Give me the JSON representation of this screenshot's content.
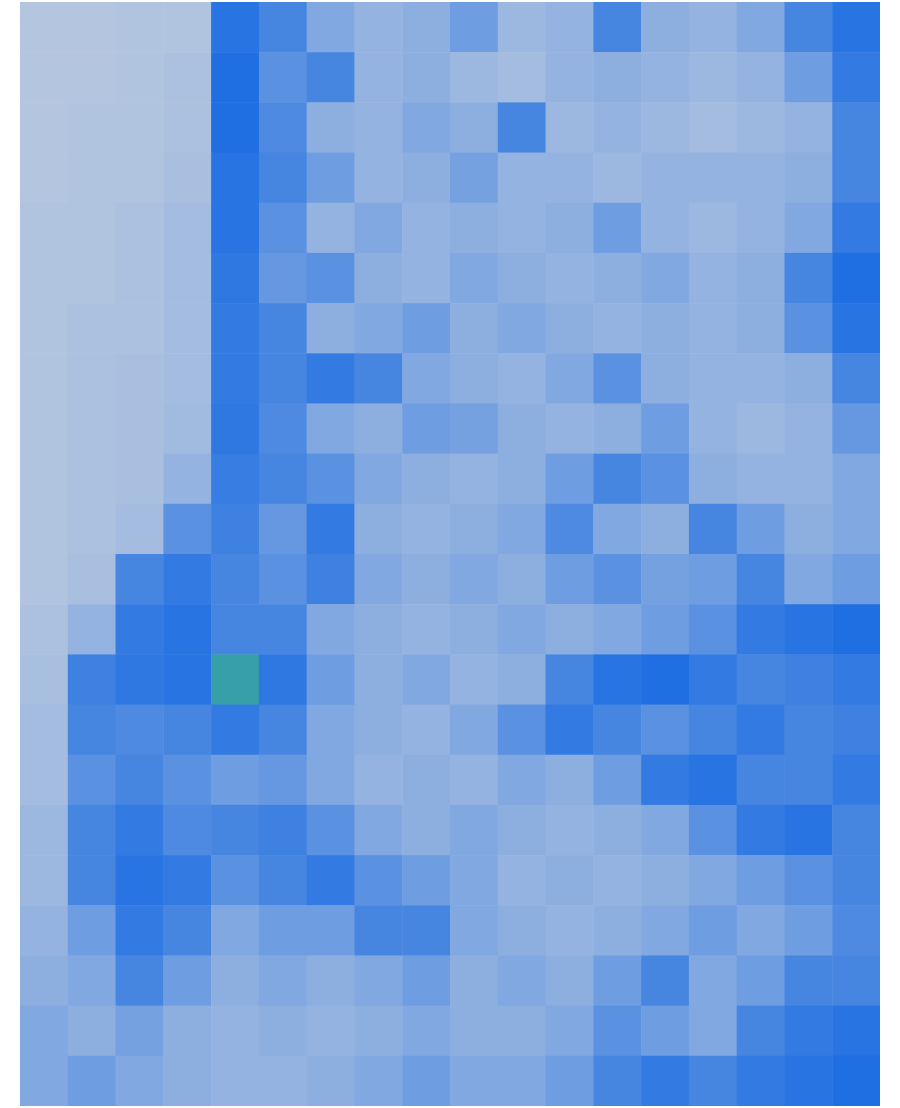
{
  "chart_data": {
    "type": "heatmap",
    "clim": [
      0,
      1
    ],
    "tick_labels": false,
    "cells": [
      [
        0.02,
        0.02,
        0.03,
        0.03,
        0.38,
        0.3,
        0.15,
        0.1,
        0.12,
        0.2,
        0.08,
        0.1,
        0.3,
        0.12,
        0.1,
        0.15,
        0.3,
        0.38
      ],
      [
        0.02,
        0.02,
        0.03,
        0.04,
        0.4,
        0.25,
        0.3,
        0.1,
        0.12,
        0.08,
        0.06,
        0.1,
        0.12,
        0.1,
        0.08,
        0.1,
        0.2,
        0.35
      ],
      [
        0.02,
        0.03,
        0.03,
        0.04,
        0.4,
        0.28,
        0.12,
        0.1,
        0.15,
        0.12,
        0.3,
        0.08,
        0.1,
        0.08,
        0.06,
        0.08,
        0.1,
        0.3
      ],
      [
        0.02,
        0.03,
        0.03,
        0.05,
        0.38,
        0.3,
        0.2,
        0.1,
        0.12,
        0.18,
        0.1,
        0.1,
        0.08,
        0.1,
        0.1,
        0.1,
        0.12,
        0.3
      ],
      [
        0.03,
        0.03,
        0.04,
        0.06,
        0.38,
        0.25,
        0.1,
        0.15,
        0.1,
        0.12,
        0.1,
        0.12,
        0.2,
        0.1,
        0.08,
        0.1,
        0.15,
        0.35
      ],
      [
        0.03,
        0.03,
        0.04,
        0.06,
        0.36,
        0.22,
        0.25,
        0.12,
        0.1,
        0.15,
        0.12,
        0.1,
        0.12,
        0.15,
        0.1,
        0.12,
        0.3,
        0.4
      ],
      [
        0.03,
        0.04,
        0.04,
        0.06,
        0.35,
        0.3,
        0.12,
        0.15,
        0.2,
        0.12,
        0.15,
        0.12,
        0.1,
        0.12,
        0.1,
        0.12,
        0.25,
        0.38
      ],
      [
        0.03,
        0.04,
        0.05,
        0.06,
        0.35,
        0.3,
        0.35,
        0.3,
        0.15,
        0.12,
        0.1,
        0.15,
        0.25,
        0.12,
        0.1,
        0.1,
        0.12,
        0.3
      ],
      [
        0.03,
        0.04,
        0.05,
        0.07,
        0.36,
        0.28,
        0.15,
        0.12,
        0.2,
        0.18,
        0.12,
        0.1,
        0.12,
        0.2,
        0.1,
        0.08,
        0.1,
        0.22
      ],
      [
        0.03,
        0.04,
        0.05,
        0.1,
        0.34,
        0.3,
        0.25,
        0.15,
        0.12,
        0.1,
        0.12,
        0.2,
        0.3,
        0.25,
        0.12,
        0.1,
        0.1,
        0.15
      ],
      [
        0.03,
        0.04,
        0.06,
        0.25,
        0.32,
        0.22,
        0.35,
        0.12,
        0.1,
        0.12,
        0.15,
        0.28,
        0.15,
        0.12,
        0.3,
        0.2,
        0.12,
        0.15
      ],
      [
        0.03,
        0.05,
        0.3,
        0.35,
        0.3,
        0.25,
        0.32,
        0.15,
        0.12,
        0.15,
        0.12,
        0.2,
        0.25,
        0.18,
        0.2,
        0.3,
        0.15,
        0.2
      ],
      [
        0.04,
        0.1,
        0.35,
        0.38,
        0.3,
        0.3,
        0.15,
        0.12,
        0.1,
        0.12,
        0.15,
        0.12,
        0.15,
        0.2,
        0.25,
        0.35,
        0.38,
        0.4
      ],
      [
        0.05,
        0.32,
        0.36,
        0.38,
        0.6,
        0.36,
        0.2,
        0.12,
        0.15,
        0.1,
        0.12,
        0.3,
        0.38,
        0.4,
        0.35,
        0.3,
        0.32,
        0.35
      ],
      [
        0.06,
        0.3,
        0.28,
        0.3,
        0.35,
        0.3,
        0.15,
        0.12,
        0.1,
        0.15,
        0.25,
        0.35,
        0.3,
        0.25,
        0.3,
        0.35,
        0.3,
        0.32
      ],
      [
        0.06,
        0.25,
        0.3,
        0.25,
        0.2,
        0.22,
        0.15,
        0.1,
        0.12,
        0.1,
        0.15,
        0.12,
        0.2,
        0.35,
        0.38,
        0.3,
        0.3,
        0.35
      ],
      [
        0.08,
        0.3,
        0.35,
        0.28,
        0.3,
        0.32,
        0.25,
        0.15,
        0.12,
        0.15,
        0.12,
        0.1,
        0.12,
        0.15,
        0.25,
        0.35,
        0.38,
        0.3
      ],
      [
        0.08,
        0.3,
        0.38,
        0.35,
        0.25,
        0.3,
        0.35,
        0.25,
        0.2,
        0.15,
        0.1,
        0.12,
        0.1,
        0.12,
        0.15,
        0.2,
        0.25,
        0.3
      ],
      [
        0.1,
        0.2,
        0.35,
        0.3,
        0.15,
        0.2,
        0.2,
        0.3,
        0.3,
        0.15,
        0.12,
        0.1,
        0.12,
        0.15,
        0.2,
        0.15,
        0.2,
        0.28
      ],
      [
        0.12,
        0.15,
        0.3,
        0.2,
        0.12,
        0.15,
        0.12,
        0.15,
        0.2,
        0.12,
        0.15,
        0.12,
        0.2,
        0.3,
        0.15,
        0.2,
        0.3,
        0.3
      ],
      [
        0.15,
        0.12,
        0.18,
        0.12,
        0.1,
        0.12,
        0.1,
        0.12,
        0.15,
        0.12,
        0.12,
        0.15,
        0.25,
        0.2,
        0.15,
        0.3,
        0.35,
        0.38
      ],
      [
        0.15,
        0.2,
        0.15,
        0.12,
        0.1,
        0.1,
        0.12,
        0.15,
        0.2,
        0.15,
        0.15,
        0.2,
        0.3,
        0.35,
        0.3,
        0.35,
        0.38,
        0.4
      ]
    ]
  }
}
